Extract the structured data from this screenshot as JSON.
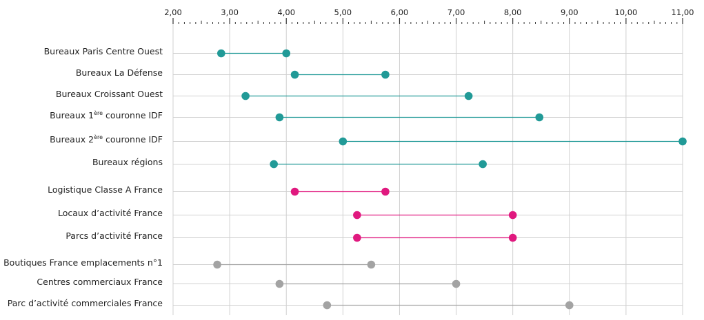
{
  "chart_data": {
    "type": "dumbbell",
    "x_axis": {
      "position": "top",
      "range": [
        2.0,
        11.0
      ],
      "major_ticks": [
        2,
        3,
        4,
        5,
        6,
        7,
        8,
        9,
        10,
        11
      ],
      "tick_labels": [
        "2,00",
        "3,00",
        "4,00",
        "5,00",
        "6,00",
        "7,00",
        "8,00",
        "9,00",
        "10,00",
        "11,00"
      ],
      "minor_step": 0.1
    },
    "grid": true,
    "colors": {
      "teal": "#219a97",
      "magenta": "#e0197f",
      "gray": "#a3a3a3",
      "grid": "#d0d0d0"
    },
    "rows": [
      {
        "label": "Bureaux Paris Centre Ouest",
        "min": 2.85,
        "max": 4.0,
        "color": "teal"
      },
      {
        "label": "Bureaux La Défense",
        "min": 4.15,
        "max": 5.75,
        "color": "teal"
      },
      {
        "label": "Bureaux Croissant Ouest",
        "min": 3.28,
        "max": 7.22,
        "color": "teal"
      },
      {
        "label_pre": "Bureaux 1",
        "label_sup": "ère",
        "label_post": " couronne IDF",
        "min": 3.88,
        "max": 8.47,
        "color": "teal"
      },
      {
        "label_pre": "Bureaux 2",
        "label_sup": "ère",
        "label_post": " couronne IDF",
        "min": 5.0,
        "max": 11.0,
        "color": "teal"
      },
      {
        "label": "Bureaux régions",
        "min": 3.78,
        "max": 7.47,
        "color": "teal"
      },
      {
        "label": "Logistique Classe A France",
        "min": 4.15,
        "max": 5.75,
        "color": "magenta"
      },
      {
        "label": "Locaux d’activité France",
        "min": 5.25,
        "max": 8.0,
        "color": "magenta"
      },
      {
        "label": "Parcs d’activité France",
        "min": 5.25,
        "max": 8.0,
        "color": "magenta"
      },
      {
        "label": "Boutiques France emplacements n°1",
        "min": 2.78,
        "max": 5.5,
        "color": "gray"
      },
      {
        "label": "Centres commerciaux France",
        "min": 3.88,
        "max": 7.0,
        "color": "gray"
      },
      {
        "label": "Parc d’activité commerciales France",
        "min": 4.72,
        "max": 9.0,
        "color": "gray"
      }
    ]
  }
}
